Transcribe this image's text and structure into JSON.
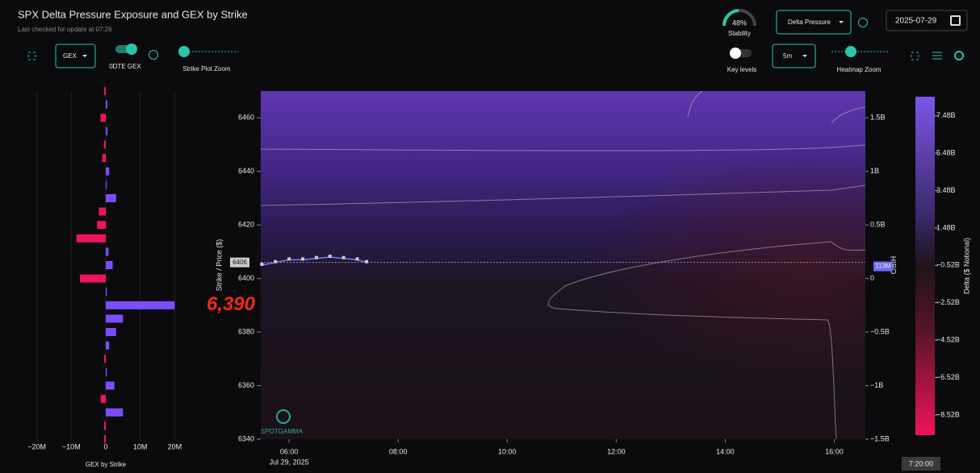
{
  "header": {
    "title": "SPX Delta Pressure Exposure and GEX by Strike",
    "subtitle": "Last checked for update at 07:26"
  },
  "controls": {
    "stability_value": 48,
    "stability_value_label": "48%",
    "stability_label": "Stability",
    "view_select": "Delta Pressure",
    "date": "2025-07-29",
    "gex_select": "GEX",
    "odte_label": "0DTE GEX",
    "strike_zoom_label": "Strike Plot Zoom",
    "key_levels_label": "Key levels",
    "interval_select": "5m",
    "heatmap_zoom_label": "Heatmap Zoom",
    "time_button": "7:20:00"
  },
  "chart_data": [
    {
      "type": "hbar",
      "xlabel": "GEX by Strike",
      "strikes": [
        6470,
        6465,
        6460,
        6455,
        6450,
        6445,
        6440,
        6435,
        6430,
        6425,
        6420,
        6415,
        6410,
        6405,
        6400,
        6395,
        6390,
        6385,
        6380,
        6375,
        6370,
        6365,
        6360,
        6355,
        6350,
        6345,
        6340
      ],
      "values": [
        -0.5,
        0.5,
        -1.5,
        0.5,
        -0.5,
        -1,
        1,
        0.3,
        3,
        -2,
        -2.5,
        -8.5,
        0.8,
        2,
        -7.5,
        0.3,
        20,
        5,
        3,
        1,
        -0.5,
        0.3,
        2.5,
        -1.5,
        5,
        -0.5,
        -0.5
      ],
      "positive_color": "#7c4dff",
      "negative_color": "#f0145a",
      "xlim": [
        -26,
        26
      ],
      "xticks": [
        {
          "value": -20,
          "label": "−20M"
        },
        {
          "value": -10,
          "label": "−10M"
        },
        0,
        {
          "value": 10,
          "label": "10M"
        },
        {
          "value": 20,
          "label": "20M"
        }
      ],
      "ylim": [
        6340,
        6470
      ]
    },
    {
      "type": "heatmap",
      "ylabel": "Strike / Price ($)",
      "y2label": "HIRO",
      "colorbar_label": "Delta ($ Notional)",
      "date_label": "Jul 29, 2025",
      "xlim": [
        5.48,
        16.57
      ],
      "xticks": [
        {
          "value": 6,
          "label": "06:00"
        },
        {
          "value": 8,
          "label": "08:00"
        },
        {
          "value": 10,
          "label": "10:00"
        },
        {
          "value": 12,
          "label": "12:00"
        },
        {
          "value": 14,
          "label": "14:00"
        },
        {
          "value": 16,
          "label": "16:00"
        }
      ],
      "ylim": [
        6340,
        6470
      ],
      "yticks": [
        6340,
        6360,
        6380,
        6400,
        6420,
        6440,
        6460
      ],
      "y2lim": [
        -1.5,
        1.75
      ],
      "y2ticks": [
        {
          "value": -1.5,
          "label": "−1.5B"
        },
        {
          "value": -1,
          "label": "−1B"
        },
        {
          "value": -0.5,
          "label": "−0.5B"
        },
        0,
        {
          "value": 0.5,
          "label": "0.5B"
        },
        {
          "value": 1,
          "label": "1B"
        },
        {
          "value": 1.5,
          "label": "1.5B"
        }
      ],
      "clim": [
        -9.6,
        8.5
      ],
      "cticks": [
        {
          "value": 7.48,
          "label": "7.48B"
        },
        {
          "value": 5.48,
          "label": "5.48B"
        },
        {
          "value": 3.48,
          "label": "3.48B"
        },
        {
          "value": 1.48,
          "label": "1.48B"
        },
        {
          "value": -0.52,
          "label": "−0.52B"
        },
        {
          "value": -2.52,
          "label": "−2.52B"
        },
        {
          "value": -4.52,
          "label": "−4.52B"
        },
        {
          "value": -6.52,
          "label": "−6.52B"
        },
        {
          "value": -8.52,
          "label": "−8.52B"
        }
      ],
      "x": [
        5.5,
        5.75,
        6.0,
        6.25,
        6.5,
        6.75,
        7.0,
        7.25,
        7.42
      ],
      "series": [
        {
          "color": "#7480ff",
          "values": [
            6405,
            6406,
            6407,
            6407,
            6407.5,
            6408,
            6407.5,
            6407,
            6406
          ]
        }
      ],
      "last_price": 6406,
      "last_hiro_value": 0.113,
      "last_hiro_label": "113M",
      "annotation_label": "6,390",
      "annotation_value": 6390,
      "brand": "SPOTGAMMA"
    }
  ]
}
